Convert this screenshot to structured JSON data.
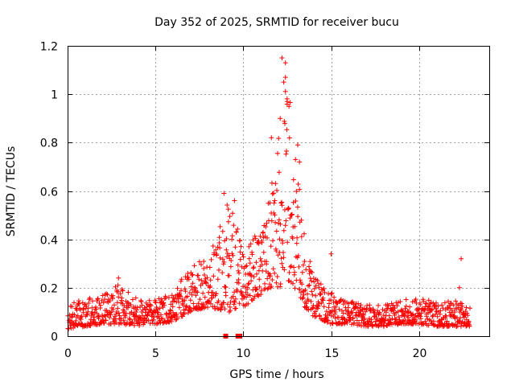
{
  "chart_data": {
    "type": "scatter",
    "title": "Day 352 of 2025, SRMTID for receiver bucu",
    "xlabel": "GPS time / hours",
    "ylabel": "SRMTID / TECUs",
    "xlim": [
      0,
      24
    ],
    "ylim": [
      0,
      1.2
    ],
    "xticks": [
      0,
      5,
      10,
      15,
      20
    ],
    "yticks": [
      0,
      0.2,
      0.4,
      0.6,
      0.8,
      1,
      1.2
    ],
    "xtick_labels": [
      "0",
      "5",
      "10",
      "15",
      "20"
    ],
    "ytick_labels": [
      "0",
      "0.2",
      "0.4",
      "0.6",
      "0.8",
      "1",
      "1.2"
    ],
    "grid": true,
    "marker": "+",
    "color": "#ff0000",
    "series": [
      {
        "name": "SRMTID",
        "envelope": [
          {
            "x": 0.0,
            "lo": 0.03,
            "hi": 0.13
          },
          {
            "x": 1.0,
            "lo": 0.04,
            "hi": 0.16
          },
          {
            "x": 2.0,
            "lo": 0.05,
            "hi": 0.17
          },
          {
            "x": 3.0,
            "lo": 0.05,
            "hi": 0.22
          },
          {
            "x": 4.0,
            "lo": 0.04,
            "hi": 0.15
          },
          {
            "x": 5.0,
            "lo": 0.05,
            "hi": 0.16
          },
          {
            "x": 6.0,
            "lo": 0.06,
            "hi": 0.18
          },
          {
            "x": 7.0,
            "lo": 0.1,
            "hi": 0.3
          },
          {
            "x": 8.0,
            "lo": 0.12,
            "hi": 0.32
          },
          {
            "x": 9.0,
            "lo": 0.1,
            "hi": 0.55
          },
          {
            "x": 9.5,
            "lo": 0.1,
            "hi": 0.5
          },
          {
            "x": 10.0,
            "lo": 0.12,
            "hi": 0.35
          },
          {
            "x": 11.0,
            "lo": 0.17,
            "hi": 0.45
          },
          {
            "x": 11.5,
            "lo": 0.2,
            "hi": 0.6
          },
          {
            "x": 12.0,
            "lo": 0.2,
            "hi": 0.85
          },
          {
            "x": 12.5,
            "lo": 0.22,
            "hi": 1.1
          },
          {
            "x": 13.0,
            "lo": 0.18,
            "hi": 0.8
          },
          {
            "x": 13.5,
            "lo": 0.12,
            "hi": 0.4
          },
          {
            "x": 14.0,
            "lo": 0.08,
            "hi": 0.25
          },
          {
            "x": 15.0,
            "lo": 0.05,
            "hi": 0.18
          },
          {
            "x": 16.0,
            "lo": 0.05,
            "hi": 0.15
          },
          {
            "x": 17.0,
            "lo": 0.04,
            "hi": 0.13
          },
          {
            "x": 18.0,
            "lo": 0.04,
            "hi": 0.13
          },
          {
            "x": 19.0,
            "lo": 0.05,
            "hi": 0.15
          },
          {
            "x": 20.0,
            "lo": 0.05,
            "hi": 0.16
          },
          {
            "x": 21.0,
            "lo": 0.04,
            "hi": 0.14
          },
          {
            "x": 22.0,
            "lo": 0.04,
            "hi": 0.15
          },
          {
            "x": 22.9,
            "lo": 0.04,
            "hi": 0.12
          }
        ],
        "outliers": [
          {
            "x": 12.2,
            "y": 1.15
          },
          {
            "x": 12.4,
            "y": 1.13
          },
          {
            "x": 12.3,
            "y": 1.05
          },
          {
            "x": 12.4,
            "y": 1.07
          },
          {
            "x": 12.5,
            "y": 0.97
          },
          {
            "x": 12.6,
            "y": 0.95
          },
          {
            "x": 12.1,
            "y": 0.9
          },
          {
            "x": 11.6,
            "y": 0.82
          },
          {
            "x": 13.1,
            "y": 0.79
          },
          {
            "x": 13.2,
            "y": 0.72
          },
          {
            "x": 8.9,
            "y": 0.59
          },
          {
            "x": 9.5,
            "y": 0.56
          },
          {
            "x": 22.4,
            "y": 0.32
          },
          {
            "x": 9.2,
            "y": 0.1
          },
          {
            "x": 2.9,
            "y": 0.24
          },
          {
            "x": 15.0,
            "y": 0.34
          },
          {
            "x": 22.3,
            "y": 0.2
          }
        ],
        "zero_points": [
          {
            "x": 9.0,
            "y": 0.0
          },
          {
            "x": 9.7,
            "y": 0.0
          },
          {
            "x": 9.8,
            "y": 0.0
          }
        ]
      }
    ]
  }
}
